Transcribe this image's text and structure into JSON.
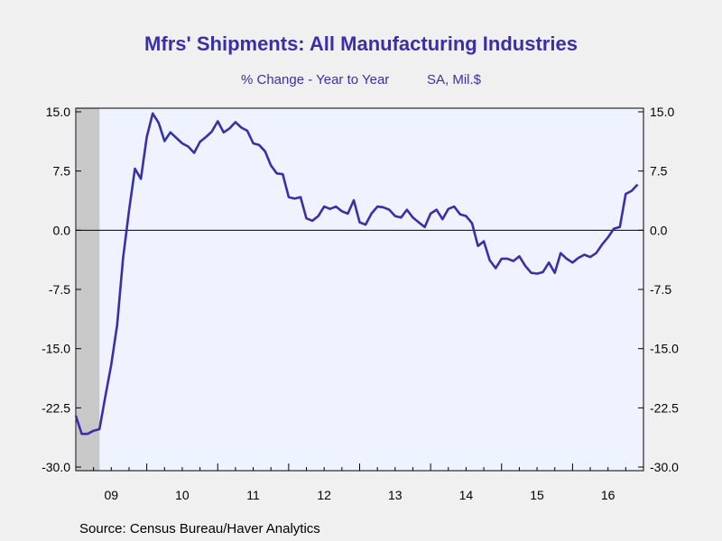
{
  "chart_data": {
    "type": "line",
    "title": "Mfrs' Shipments: All Manufacturing Industries",
    "subtitle_left": "% Change - Year to Year",
    "subtitle_right": "SA, Mil.$",
    "source": "Source:  Census Bureau/Haver Analytics",
    "ylim": [
      -30.0,
      15.0
    ],
    "y_ticks": [
      "15.0",
      "7.5",
      "0.0",
      "-7.5",
      "-15.0",
      "-22.5",
      "-30.0"
    ],
    "x_tick_labels": [
      "09",
      "10",
      "11",
      "12",
      "13",
      "14",
      "15",
      "16"
    ],
    "recession_shading": {
      "from": 2009.0,
      "to": 2009.5,
      "color": "#c8c8c8"
    },
    "line_color": "#3a2fa8",
    "plot_background": "#eef3ff",
    "grid": false,
    "zero_line": true,
    "series": [
      {
        "x": [
          2009.0,
          2009.083,
          2009.167,
          2009.25,
          2009.333,
          2009.417,
          2009.5,
          2009.583,
          2009.667,
          2009.75,
          2009.833,
          2009.917,
          2010.0,
          2010.083,
          2010.167,
          2010.25,
          2010.333,
          2010.417,
          2010.5,
          2010.583,
          2010.667,
          2010.75,
          2010.833,
          2010.917,
          2011.0,
          2011.083,
          2011.167,
          2011.25,
          2011.333,
          2011.417,
          2011.5,
          2011.583,
          2011.667,
          2011.75,
          2011.833,
          2011.917,
          2012.0,
          2012.083,
          2012.167,
          2012.25,
          2012.333,
          2012.417,
          2012.5,
          2012.583,
          2012.667,
          2012.75,
          2012.833,
          2012.917,
          2013.0,
          2013.083,
          2013.167,
          2013.25,
          2013.333,
          2013.417,
          2013.5,
          2013.583,
          2013.667,
          2013.75,
          2013.833,
          2013.917,
          2014.0,
          2014.083,
          2014.167,
          2014.25,
          2014.333,
          2014.417,
          2014.5,
          2014.583,
          2014.667,
          2014.75,
          2014.833,
          2014.917,
          2015.0,
          2015.083,
          2015.167,
          2015.25,
          2015.333,
          2015.417,
          2015.5,
          2015.583,
          2015.667,
          2015.75,
          2015.833,
          2015.917,
          2016.0,
          2016.083,
          2016.167,
          2016.25,
          2016.333,
          2016.417,
          2016.5,
          2016.583,
          2016.667,
          2016.75,
          2016.833,
          2016.917
        ],
        "values": [
          -23.5,
          -25.8,
          -25.8,
          -25.4,
          -25.2,
          -21.0,
          -17.0,
          -12.0,
          -3.5,
          2.5,
          7.8,
          6.5,
          11.8,
          14.8,
          13.6,
          11.3,
          12.4,
          11.7,
          11.0,
          10.6,
          9.8,
          11.2,
          11.8,
          12.5,
          13.8,
          12.4,
          12.9,
          13.7,
          13.0,
          12.6,
          11.0,
          10.8,
          10.0,
          8.2,
          7.2,
          7.1,
          4.2,
          4.0,
          4.2,
          1.5,
          1.2,
          1.8,
          3.0,
          2.7,
          3.0,
          2.4,
          2.1,
          3.8,
          1.0,
          0.7,
          2.1,
          3.0,
          2.9,
          2.6,
          1.8,
          1.6,
          2.6,
          1.6,
          1.0,
          0.4,
          2.1,
          2.6,
          1.4,
          2.7,
          3.0,
          2.0,
          1.8,
          0.9,
          -2.0,
          -1.4,
          -3.8,
          -4.8,
          -3.6,
          -3.6,
          -3.9,
          -3.3,
          -4.5,
          -5.4,
          -5.5,
          -5.3,
          -4.1,
          -5.4,
          -2.9,
          -3.6,
          -4.1,
          -3.5,
          -3.1,
          -3.4,
          -2.9,
          -1.8,
          -0.9,
          0.2,
          0.4,
          4.6,
          5.0,
          5.8
        ]
      }
    ]
  }
}
